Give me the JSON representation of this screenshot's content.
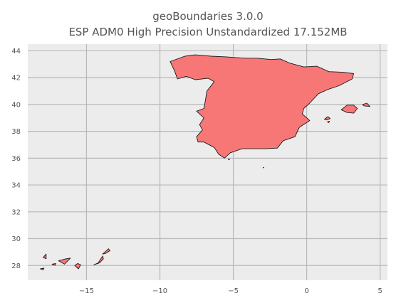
{
  "figure": {
    "title_line1": "geoBoundaries 3.0.0",
    "title_line2": "ESP ADM0 High Precision Unstandardized 17.152MB"
  },
  "chart_data": {
    "type": "map",
    "title": "geoBoundaries 3.0.0 — ESP ADM0 High Precision Unstandardized 17.152MB",
    "xlim": [
      -19,
      5.5
    ],
    "ylim": [
      26.9,
      44.5
    ],
    "x_ticks": [
      -15,
      -10,
      -5,
      0,
      5
    ],
    "y_ticks": [
      28,
      30,
      32,
      34,
      36,
      38,
      40,
      42,
      44
    ],
    "x_tick_labels": [
      "−15",
      "−10",
      "−5",
      "0",
      "5"
    ],
    "y_tick_labels": [
      "28",
      "30",
      "32",
      "34",
      "36",
      "38",
      "40",
      "42",
      "44"
    ],
    "grid": true,
    "background_color": "#ececec",
    "fill_color": "#f77777",
    "edge_color": "#1a1a1a",
    "features": [
      {
        "name": "mainland",
        "coords": [
          [
            -9.3,
            43.2
          ],
          [
            -8.3,
            43.6
          ],
          [
            -7.6,
            43.7
          ],
          [
            -6.5,
            43.6
          ],
          [
            -5.5,
            43.55
          ],
          [
            -4.2,
            43.45
          ],
          [
            -3.4,
            43.45
          ],
          [
            -2.4,
            43.35
          ],
          [
            -1.8,
            43.4
          ],
          [
            -1.2,
            43.1
          ],
          [
            -0.2,
            42.8
          ],
          [
            0.7,
            42.85
          ],
          [
            1.5,
            42.45
          ],
          [
            2.5,
            42.4
          ],
          [
            3.2,
            42.3
          ],
          [
            3.1,
            41.9
          ],
          [
            2.2,
            41.4
          ],
          [
            1.4,
            41.1
          ],
          [
            0.8,
            40.8
          ],
          [
            0.2,
            40.1
          ],
          [
            -0.2,
            39.7
          ],
          [
            -0.3,
            39.3
          ],
          [
            0.2,
            38.8
          ],
          [
            -0.5,
            38.3
          ],
          [
            -0.8,
            37.6
          ],
          [
            -1.6,
            37.3
          ],
          [
            -2.0,
            36.75
          ],
          [
            -2.8,
            36.7
          ],
          [
            -4.4,
            36.7
          ],
          [
            -5.2,
            36.4
          ],
          [
            -5.6,
            36.0
          ],
          [
            -6.0,
            36.3
          ],
          [
            -6.3,
            36.8
          ],
          [
            -7.0,
            37.2
          ],
          [
            -7.4,
            37.2
          ],
          [
            -7.5,
            37.6
          ],
          [
            -7.1,
            38.1
          ],
          [
            -7.3,
            38.5
          ],
          [
            -7.0,
            39.0
          ],
          [
            -7.5,
            39.5
          ],
          [
            -7.0,
            39.7
          ],
          [
            -6.9,
            40.3
          ],
          [
            -6.8,
            41.0
          ],
          [
            -6.3,
            41.7
          ],
          [
            -6.7,
            41.95
          ],
          [
            -7.6,
            41.85
          ],
          [
            -8.2,
            42.1
          ],
          [
            -8.8,
            41.9
          ],
          [
            -9.0,
            42.5
          ],
          [
            -9.3,
            43.2
          ]
        ]
      },
      {
        "name": "mallorca",
        "coords": [
          [
            2.35,
            39.6
          ],
          [
            2.75,
            39.95
          ],
          [
            3.2,
            39.95
          ],
          [
            3.45,
            39.7
          ],
          [
            3.2,
            39.35
          ],
          [
            2.75,
            39.4
          ],
          [
            2.35,
            39.6
          ]
        ]
      },
      {
        "name": "menorca",
        "coords": [
          [
            3.8,
            40.0
          ],
          [
            4.1,
            40.1
          ],
          [
            4.3,
            39.85
          ],
          [
            3.9,
            39.9
          ],
          [
            3.8,
            40.0
          ]
        ]
      },
      {
        "name": "ibiza",
        "coords": [
          [
            1.2,
            38.9
          ],
          [
            1.45,
            39.1
          ],
          [
            1.6,
            38.95
          ],
          [
            1.35,
            38.85
          ],
          [
            1.2,
            38.9
          ]
        ]
      },
      {
        "name": "formentera",
        "coords": [
          [
            1.4,
            38.7
          ],
          [
            1.55,
            38.75
          ],
          [
            1.5,
            38.65
          ],
          [
            1.4,
            38.7
          ]
        ]
      },
      {
        "name": "ceuta",
        "coords": [
          [
            -5.35,
            35.9
          ],
          [
            -5.25,
            35.92
          ],
          [
            -5.3,
            35.87
          ],
          [
            -5.35,
            35.9
          ]
        ]
      },
      {
        "name": "melilla",
        "coords": [
          [
            -2.97,
            35.3
          ],
          [
            -2.93,
            35.32
          ],
          [
            -2.92,
            35.27
          ],
          [
            -2.97,
            35.3
          ]
        ]
      },
      {
        "name": "lanzarote",
        "coords": [
          [
            -13.9,
            28.85
          ],
          [
            -13.5,
            29.25
          ],
          [
            -13.4,
            29.1
          ],
          [
            -13.7,
            28.9
          ],
          [
            -13.9,
            28.85
          ]
        ]
      },
      {
        "name": "fuerteventura",
        "coords": [
          [
            -14.5,
            28.05
          ],
          [
            -14.2,
            28.2
          ],
          [
            -13.9,
            28.7
          ],
          [
            -13.85,
            28.5
          ],
          [
            -14.1,
            28.2
          ],
          [
            -14.5,
            28.05
          ]
        ]
      },
      {
        "name": "gran-canaria",
        "coords": [
          [
            -15.8,
            28.0
          ],
          [
            -15.6,
            28.15
          ],
          [
            -15.4,
            28.05
          ],
          [
            -15.55,
            27.75
          ],
          [
            -15.8,
            28.0
          ]
        ]
      },
      {
        "name": "tenerife",
        "coords": [
          [
            -16.9,
            28.35
          ],
          [
            -16.4,
            28.5
          ],
          [
            -16.1,
            28.55
          ],
          [
            -16.5,
            28.1
          ],
          [
            -16.9,
            28.35
          ]
        ]
      },
      {
        "name": "la-gomera",
        "coords": [
          [
            -17.35,
            28.1
          ],
          [
            -17.1,
            28.15
          ],
          [
            -17.15,
            28.02
          ],
          [
            -17.35,
            28.1
          ]
        ]
      },
      {
        "name": "la-palma",
        "coords": [
          [
            -17.95,
            28.6
          ],
          [
            -17.75,
            28.85
          ],
          [
            -17.75,
            28.5
          ],
          [
            -17.95,
            28.6
          ]
        ]
      },
      {
        "name": "el-hierro",
        "coords": [
          [
            -18.15,
            27.75
          ],
          [
            -17.9,
            27.8
          ],
          [
            -17.95,
            27.68
          ],
          [
            -18.15,
            27.75
          ]
        ]
      }
    ]
  }
}
